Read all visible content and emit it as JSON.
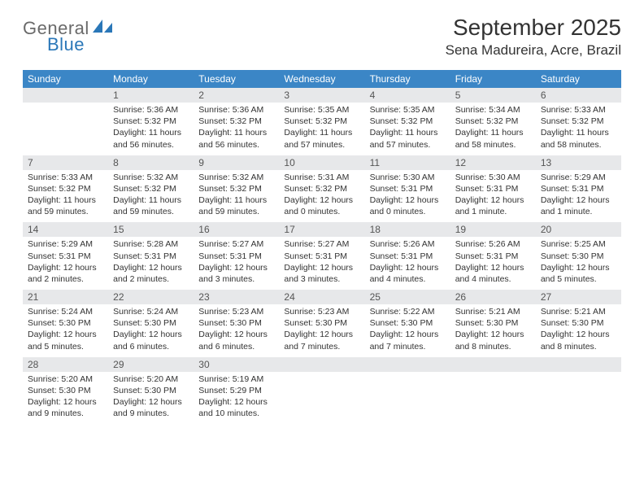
{
  "logo": {
    "text_general": "General",
    "text_blue": "Blue",
    "icon_color": "#2a77b8"
  },
  "header": {
    "month_title": "September 2025",
    "location": "Sena Madureira, Acre, Brazil"
  },
  "styling": {
    "header_bg": "#3b86c6",
    "header_text": "#ffffff",
    "daynum_bg": "#e7e8ea",
    "row_border": "#2a6aa3",
    "body_font_size": 10.5,
    "title_font_size": 28,
    "location_font_size": 17,
    "dayhead_font_size": 12
  },
  "day_labels": [
    "Sunday",
    "Monday",
    "Tuesday",
    "Wednesday",
    "Thursday",
    "Friday",
    "Saturday"
  ],
  "weeks": [
    {
      "nums": [
        "",
        "1",
        "2",
        "3",
        "4",
        "5",
        "6"
      ],
      "cells": [
        null,
        {
          "sunrise": "Sunrise: 5:36 AM",
          "sunset": "Sunset: 5:32 PM",
          "day1": "Daylight: 11 hours",
          "day2": "and 56 minutes."
        },
        {
          "sunrise": "Sunrise: 5:36 AM",
          "sunset": "Sunset: 5:32 PM",
          "day1": "Daylight: 11 hours",
          "day2": "and 56 minutes."
        },
        {
          "sunrise": "Sunrise: 5:35 AM",
          "sunset": "Sunset: 5:32 PM",
          "day1": "Daylight: 11 hours",
          "day2": "and 57 minutes."
        },
        {
          "sunrise": "Sunrise: 5:35 AM",
          "sunset": "Sunset: 5:32 PM",
          "day1": "Daylight: 11 hours",
          "day2": "and 57 minutes."
        },
        {
          "sunrise": "Sunrise: 5:34 AM",
          "sunset": "Sunset: 5:32 PM",
          "day1": "Daylight: 11 hours",
          "day2": "and 58 minutes."
        },
        {
          "sunrise": "Sunrise: 5:33 AM",
          "sunset": "Sunset: 5:32 PM",
          "day1": "Daylight: 11 hours",
          "day2": "and 58 minutes."
        }
      ]
    },
    {
      "nums": [
        "7",
        "8",
        "9",
        "10",
        "11",
        "12",
        "13"
      ],
      "cells": [
        {
          "sunrise": "Sunrise: 5:33 AM",
          "sunset": "Sunset: 5:32 PM",
          "day1": "Daylight: 11 hours",
          "day2": "and 59 minutes."
        },
        {
          "sunrise": "Sunrise: 5:32 AM",
          "sunset": "Sunset: 5:32 PM",
          "day1": "Daylight: 11 hours",
          "day2": "and 59 minutes."
        },
        {
          "sunrise": "Sunrise: 5:32 AM",
          "sunset": "Sunset: 5:32 PM",
          "day1": "Daylight: 11 hours",
          "day2": "and 59 minutes."
        },
        {
          "sunrise": "Sunrise: 5:31 AM",
          "sunset": "Sunset: 5:32 PM",
          "day1": "Daylight: 12 hours",
          "day2": "and 0 minutes."
        },
        {
          "sunrise": "Sunrise: 5:30 AM",
          "sunset": "Sunset: 5:31 PM",
          "day1": "Daylight: 12 hours",
          "day2": "and 0 minutes."
        },
        {
          "sunrise": "Sunrise: 5:30 AM",
          "sunset": "Sunset: 5:31 PM",
          "day1": "Daylight: 12 hours",
          "day2": "and 1 minute."
        },
        {
          "sunrise": "Sunrise: 5:29 AM",
          "sunset": "Sunset: 5:31 PM",
          "day1": "Daylight: 12 hours",
          "day2": "and 1 minute."
        }
      ]
    },
    {
      "nums": [
        "14",
        "15",
        "16",
        "17",
        "18",
        "19",
        "20"
      ],
      "cells": [
        {
          "sunrise": "Sunrise: 5:29 AM",
          "sunset": "Sunset: 5:31 PM",
          "day1": "Daylight: 12 hours",
          "day2": "and 2 minutes."
        },
        {
          "sunrise": "Sunrise: 5:28 AM",
          "sunset": "Sunset: 5:31 PM",
          "day1": "Daylight: 12 hours",
          "day2": "and 2 minutes."
        },
        {
          "sunrise": "Sunrise: 5:27 AM",
          "sunset": "Sunset: 5:31 PM",
          "day1": "Daylight: 12 hours",
          "day2": "and 3 minutes."
        },
        {
          "sunrise": "Sunrise: 5:27 AM",
          "sunset": "Sunset: 5:31 PM",
          "day1": "Daylight: 12 hours",
          "day2": "and 3 minutes."
        },
        {
          "sunrise": "Sunrise: 5:26 AM",
          "sunset": "Sunset: 5:31 PM",
          "day1": "Daylight: 12 hours",
          "day2": "and 4 minutes."
        },
        {
          "sunrise": "Sunrise: 5:26 AM",
          "sunset": "Sunset: 5:31 PM",
          "day1": "Daylight: 12 hours",
          "day2": "and 4 minutes."
        },
        {
          "sunrise": "Sunrise: 5:25 AM",
          "sunset": "Sunset: 5:30 PM",
          "day1": "Daylight: 12 hours",
          "day2": "and 5 minutes."
        }
      ]
    },
    {
      "nums": [
        "21",
        "22",
        "23",
        "24",
        "25",
        "26",
        "27"
      ],
      "cells": [
        {
          "sunrise": "Sunrise: 5:24 AM",
          "sunset": "Sunset: 5:30 PM",
          "day1": "Daylight: 12 hours",
          "day2": "and 5 minutes."
        },
        {
          "sunrise": "Sunrise: 5:24 AM",
          "sunset": "Sunset: 5:30 PM",
          "day1": "Daylight: 12 hours",
          "day2": "and 6 minutes."
        },
        {
          "sunrise": "Sunrise: 5:23 AM",
          "sunset": "Sunset: 5:30 PM",
          "day1": "Daylight: 12 hours",
          "day2": "and 6 minutes."
        },
        {
          "sunrise": "Sunrise: 5:23 AM",
          "sunset": "Sunset: 5:30 PM",
          "day1": "Daylight: 12 hours",
          "day2": "and 7 minutes."
        },
        {
          "sunrise": "Sunrise: 5:22 AM",
          "sunset": "Sunset: 5:30 PM",
          "day1": "Daylight: 12 hours",
          "day2": "and 7 minutes."
        },
        {
          "sunrise": "Sunrise: 5:21 AM",
          "sunset": "Sunset: 5:30 PM",
          "day1": "Daylight: 12 hours",
          "day2": "and 8 minutes."
        },
        {
          "sunrise": "Sunrise: 5:21 AM",
          "sunset": "Sunset: 5:30 PM",
          "day1": "Daylight: 12 hours",
          "day2": "and 8 minutes."
        }
      ]
    },
    {
      "nums": [
        "28",
        "29",
        "30",
        "",
        "",
        "",
        ""
      ],
      "cells": [
        {
          "sunrise": "Sunrise: 5:20 AM",
          "sunset": "Sunset: 5:30 PM",
          "day1": "Daylight: 12 hours",
          "day2": "and 9 minutes."
        },
        {
          "sunrise": "Sunrise: 5:20 AM",
          "sunset": "Sunset: 5:30 PM",
          "day1": "Daylight: 12 hours",
          "day2": "and 9 minutes."
        },
        {
          "sunrise": "Sunrise: 5:19 AM",
          "sunset": "Sunset: 5:29 PM",
          "day1": "Daylight: 12 hours",
          "day2": "and 10 minutes."
        },
        null,
        null,
        null,
        null
      ]
    }
  ]
}
